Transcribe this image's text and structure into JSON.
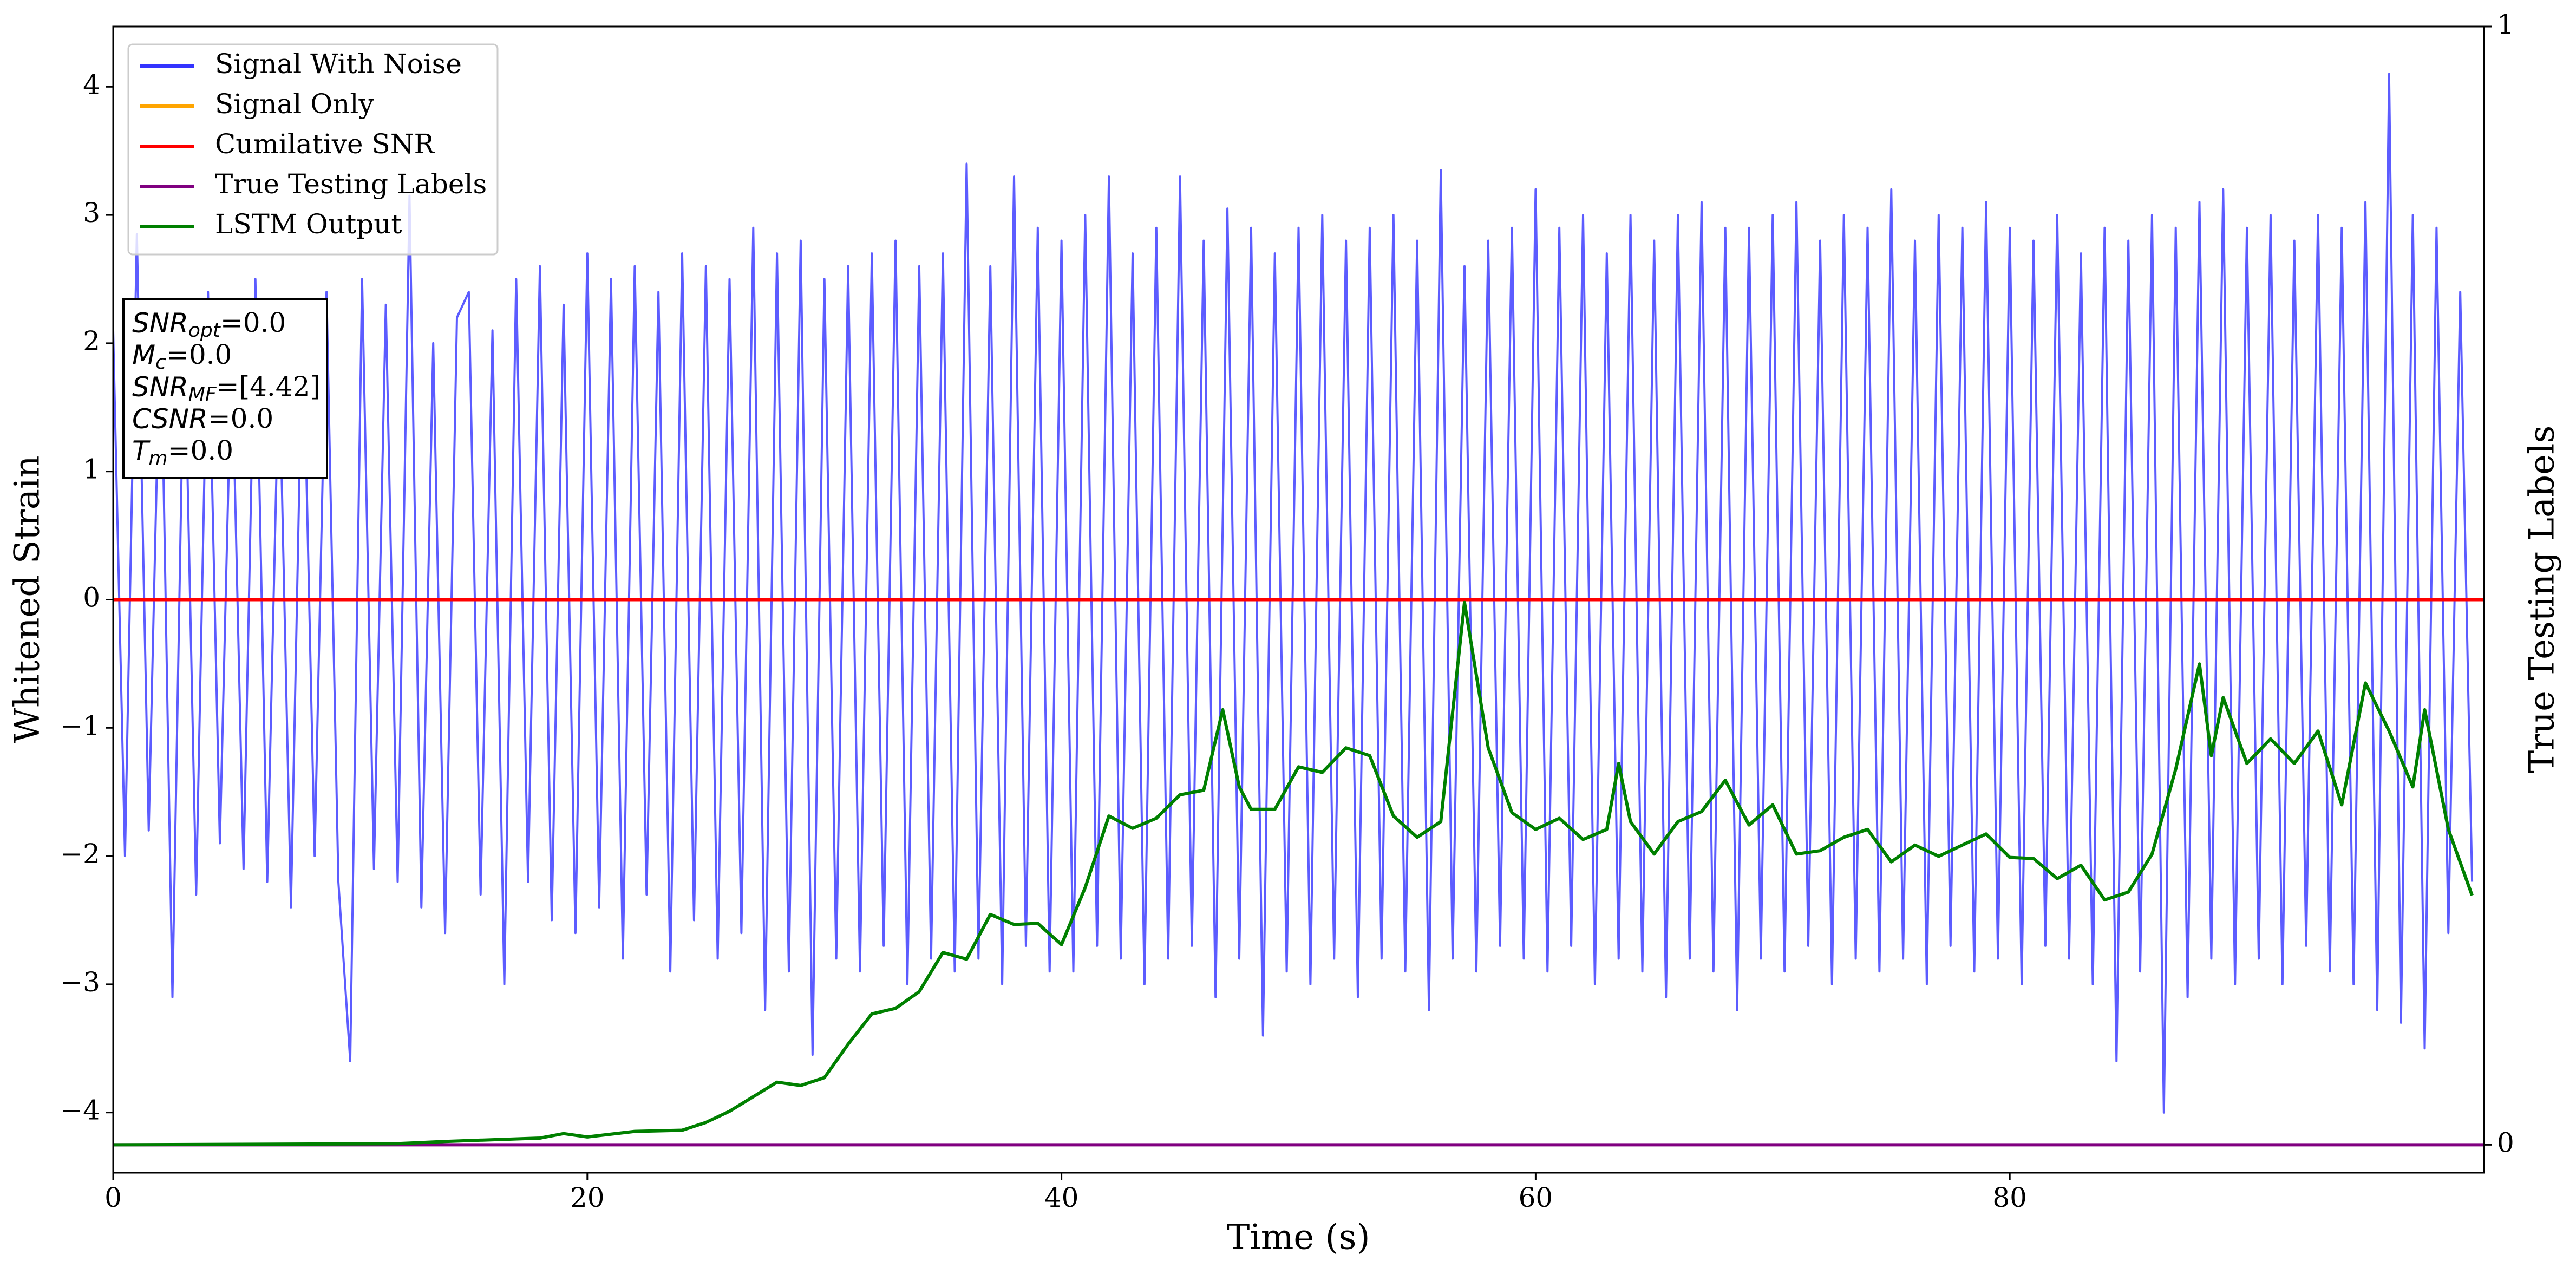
{
  "chart_data": {
    "type": "line",
    "xlabel": "Time (s)",
    "ylabel": "Whitened Strain",
    "y2label": "True Testing Labels",
    "xlim": [
      0,
      100
    ],
    "ylim": [
      -4.47,
      4.47
    ],
    "y2lim": [
      -0.025,
      1
    ],
    "xticks": [
      0,
      20,
      40,
      60,
      80
    ],
    "yticks": [
      {
        "value": -4,
        "label": "−4"
      },
      {
        "value": -3,
        "label": "−3"
      },
      {
        "value": -2,
        "label": "−2"
      },
      {
        "value": -1,
        "label": "−1"
      },
      0,
      1,
      2,
      3,
      4
    ],
    "y2ticks": [
      0,
      1
    ],
    "legend": "upper left",
    "series": [
      {
        "name": "Signal With Noise",
        "color": "#3333ff",
        "axis": "y",
        "x": [
          0,
          0.5,
          1,
          1.5,
          2,
          2.5,
          3,
          3.5,
          4,
          4.5,
          5,
          5.5,
          6,
          6.5,
          7,
          7.5,
          8,
          8.5,
          9,
          9.5,
          10,
          10.5,
          11,
          11.5,
          12,
          12.5,
          13,
          13.5,
          14,
          14.5,
          15,
          15.5,
          16,
          16.5,
          17,
          17.5,
          18,
          18.5,
          19,
          19.5,
          20,
          20.5,
          21,
          21.5,
          22,
          22.5,
          23,
          23.5,
          24,
          24.5,
          25,
          25.5,
          26,
          26.5,
          27,
          27.5,
          28,
          28.5,
          29,
          29.5,
          30,
          30.5,
          31,
          31.5,
          32,
          32.5,
          33,
          33.5,
          34,
          34.5,
          35,
          35.5,
          36,
          36.5,
          37,
          37.5,
          38,
          38.5,
          39,
          39.5,
          40,
          40.5,
          41,
          41.5,
          42,
          42.5,
          43,
          43.5,
          44,
          44.5,
          45,
          45.5,
          46,
          46.5,
          47,
          47.5,
          48,
          48.5,
          49,
          49.5,
          50,
          50.5,
          51,
          51.5,
          52,
          52.5,
          53,
          53.5,
          54,
          54.5,
          55,
          55.5,
          56,
          56.5,
          57,
          57.5,
          58,
          58.5,
          59,
          59.5,
          60,
          60.5,
          61,
          61.5,
          62,
          62.5,
          63,
          63.5,
          64,
          64.5,
          65,
          65.5,
          66,
          66.5,
          67,
          67.5,
          68,
          68.5,
          69,
          69.5,
          70,
          70.5,
          71,
          71.5,
          72,
          72.5,
          73,
          73.5,
          74,
          74.5,
          75,
          75.5,
          76,
          76.5,
          77,
          77.5,
          78,
          78.5,
          79,
          79.5,
          80,
          80.5,
          81,
          81.5,
          82,
          82.5,
          83,
          83.5,
          84,
          84.5,
          85,
          85.5,
          86,
          86.5,
          87,
          87.5,
          88,
          88.5,
          89,
          89.5,
          90,
          90.5,
          91,
          91.5,
          92,
          92.5,
          93,
          93.5,
          94,
          94.5,
          95,
          95.5,
          96,
          96.5,
          97,
          97.5,
          98,
          98.5,
          99,
          99.5
        ],
        "values": [
          2.1,
          -2.0,
          2.85,
          -1.8,
          2.3,
          -3.1,
          2.2,
          -2.3,
          2.4,
          -1.9,
          2.0,
          -2.1,
          2.5,
          -2.2,
          1.9,
          -2.4,
          2.3,
          -2.0,
          2.4,
          -2.2,
          -3.6,
          2.5,
          -2.1,
          2.3,
          -2.2,
          3.15,
          -2.4,
          2.0,
          -2.6,
          2.2,
          2.4,
          -2.3,
          2.1,
          -3.0,
          2.5,
          -2.2,
          2.6,
          -2.5,
          2.3,
          -2.6,
          2.7,
          -2.4,
          2.5,
          -2.8,
          2.6,
          -2.3,
          2.4,
          -2.9,
          2.7,
          -2.5,
          2.6,
          -2.8,
          2.5,
          -2.6,
          2.9,
          -3.2,
          2.7,
          -2.9,
          2.8,
          -3.55,
          2.5,
          -2.8,
          2.6,
          -2.9,
          2.7,
          -2.7,
          2.8,
          -3.0,
          2.6,
          -2.8,
          2.7,
          -2.9,
          3.4,
          -2.8,
          2.6,
          -3.0,
          3.3,
          -2.7,
          2.9,
          -2.9,
          2.8,
          -2.9,
          3.0,
          -2.7,
          3.3,
          -2.8,
          2.7,
          -3.0,
          2.9,
          -2.8,
          3.3,
          -2.7,
          2.8,
          -3.1,
          3.05,
          -2.8,
          2.9,
          -3.4,
          2.7,
          -2.9,
          2.9,
          -3.0,
          3.0,
          -2.8,
          2.8,
          -3.1,
          2.9,
          -2.8,
          3.0,
          -2.9,
          2.8,
          -3.2,
          3.35,
          -2.8,
          2.6,
          -2.9,
          2.8,
          -2.7,
          2.9,
          -2.8,
          3.2,
          -2.9,
          2.9,
          -2.7,
          3.0,
          -3.0,
          2.7,
          -2.8,
          3.0,
          -2.9,
          2.8,
          -3.1,
          3.0,
          -2.8,
          3.1,
          -2.9,
          2.9,
          -3.2,
          2.9,
          -2.8,
          3.0,
          -2.9,
          3.1,
          -2.7,
          2.8,
          -3.0,
          3.0,
          -2.8,
          2.9,
          -2.9,
          3.2,
          -2.8,
          2.8,
          -3.0,
          3.0,
          -2.7,
          2.9,
          -2.9,
          3.1,
          -2.8,
          2.9,
          -3.0,
          2.8,
          -2.7,
          3.0,
          -2.8,
          2.7,
          -3.0,
          2.9,
          -3.6,
          2.8,
          -2.9,
          3.0,
          -4.0,
          2.9,
          -3.1,
          3.1,
          -2.8,
          3.2,
          -3.0,
          2.9,
          -2.8,
          3.0,
          -3.0,
          2.8,
          -2.7,
          3.0,
          -2.9,
          2.9,
          -3.0,
          3.1,
          -3.2,
          4.1,
          -3.3,
          3.0,
          -3.5,
          2.9,
          -2.6,
          2.4,
          -2.2
        ]
      },
      {
        "name": "Signal Only",
        "color": "#ffa500",
        "axis": "y",
        "x": [
          0,
          100
        ],
        "values": [
          0,
          0
        ]
      },
      {
        "name": "Cumilative SNR",
        "color": "#ff0000",
        "axis": "y",
        "x": [
          0,
          100
        ],
        "values": [
          0,
          0
        ]
      },
      {
        "name": "True Testing Labels",
        "color": "#800080",
        "axis": "y2",
        "x": [
          0,
          100
        ],
        "values": [
          0,
          0
        ]
      },
      {
        "name": "LSTM Output",
        "color": "#008000",
        "axis": "y2",
        "x": [
          0,
          12,
          14,
          18,
          19,
          20,
          22,
          24,
          25,
          26,
          27,
          28,
          29,
          30,
          31,
          32,
          33,
          34,
          35,
          36,
          37,
          38,
          39,
          40,
          41,
          42,
          43,
          44,
          45,
          46,
          46.8,
          47.5,
          48,
          49,
          50,
          51,
          52,
          53,
          54,
          55,
          56,
          57,
          58,
          59,
          60,
          61,
          62,
          63,
          63.5,
          64,
          65,
          66,
          67,
          68,
          69,
          70,
          71,
          72,
          73,
          74,
          75,
          76,
          77,
          78,
          79,
          80,
          81,
          82,
          83,
          84,
          85,
          86,
          87,
          88,
          88.5,
          89,
          90,
          91,
          92,
          93,
          94,
          95,
          96,
          97,
          97.5,
          98.5,
          99.5
        ],
        "values": [
          0,
          0.001,
          0.003,
          0.006,
          0.01,
          0.007,
          0.012,
          0.013,
          0.02,
          0.03,
          0.043,
          0.056,
          0.053,
          0.06,
          0.09,
          0.117,
          0.122,
          0.137,
          0.172,
          0.166,
          0.206,
          0.197,
          0.198,
          0.179,
          0.23,
          0.294,
          0.283,
          0.292,
          0.313,
          0.317,
          0.389,
          0.32,
          0.3,
          0.3,
          0.338,
          0.333,
          0.355,
          0.348,
          0.294,
          0.275,
          0.289,
          0.485,
          0.355,
          0.297,
          0.282,
          0.292,
          0.273,
          0.282,
          0.341,
          0.289,
          0.26,
          0.289,
          0.298,
          0.326,
          0.286,
          0.304,
          0.26,
          0.263,
          0.275,
          0.282,
          0.253,
          0.268,
          0.258,
          0.268,
          0.278,
          0.257,
          0.256,
          0.238,
          0.25,
          0.219,
          0.226,
          0.26,
          0.336,
          0.43,
          0.348,
          0.4,
          0.341,
          0.363,
          0.341,
          0.37,
          0.304,
          0.413,
          0.37,
          0.32,
          0.389,
          0.282,
          0.223
        ]
      }
    ],
    "annotation": [
      {
        "var": "SNR",
        "sub": "opt",
        "text": "=0.0"
      },
      {
        "var": "M",
        "sub": "c",
        "text": "=0.0"
      },
      {
        "var": "SNR",
        "sub": "MF",
        "text": "=[4.42]"
      },
      {
        "var": "CSNR",
        "text": "=0.0"
      },
      {
        "var": "T",
        "sub": "m",
        "text": "=0.0"
      }
    ]
  }
}
